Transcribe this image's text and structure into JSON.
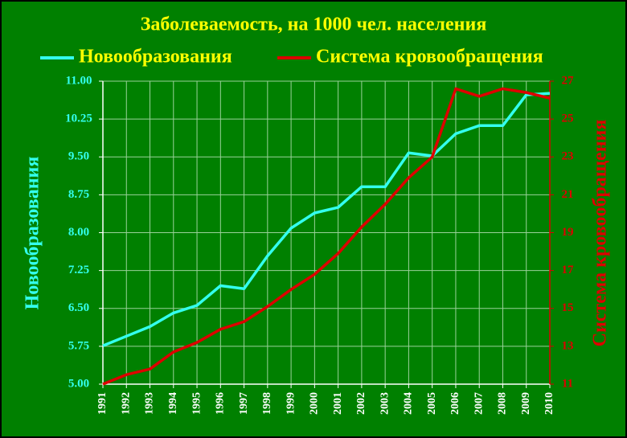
{
  "chart_data": {
    "type": "line",
    "title": "Заболеваемость, на 1000 чел. населения",
    "categories": [
      "1991",
      "1992",
      "1993",
      "1994",
      "1995",
      "1996",
      "1997",
      "1998",
      "1999",
      "2000",
      "2001",
      "2002",
      "2003",
      "2004",
      "2005",
      "2006",
      "2007",
      "2008",
      "2009",
      "2010"
    ],
    "series": [
      {
        "name": "Новообразования",
        "color": "#33ffee",
        "values": [
          5.76,
          5.95,
          6.14,
          6.41,
          6.56,
          6.95,
          6.89,
          7.54,
          8.09,
          8.39,
          8.5,
          8.91,
          8.91,
          9.58,
          9.52,
          9.96,
          10.12,
          10.12,
          10.73,
          10.76
        ]
      },
      {
        "name": "Система кровообращения",
        "color": "#dd0000",
        "axis": "y2",
        "values": [
          11.0,
          11.5,
          11.8,
          12.7,
          13.2,
          13.9,
          14.3,
          15.1,
          16.0,
          16.8,
          17.9,
          19.3,
          20.5,
          21.9,
          23.0,
          26.6,
          26.2,
          26.6,
          26.4,
          26.1
        ]
      }
    ],
    "ylabel": "Новообразования",
    "y2label": "Система кровообращения",
    "ylim": [
      5,
      11
    ],
    "yticks": [
      {
        "value": 5,
        "label": "5.00"
      },
      5.75,
      {
        "value": 6.5,
        "label": "6.50"
      },
      7.25,
      {
        "value": 8,
        "label": "8.00"
      },
      8.75,
      {
        "value": 9.5,
        "label": "9.50"
      },
      10.25,
      {
        "value": 11,
        "label": "11.00"
      }
    ],
    "y2lim": [
      11,
      27
    ],
    "y2ticks": [
      11,
      13,
      15,
      17,
      19,
      21,
      23,
      25,
      27
    ],
    "grid": true,
    "legend": "top"
  }
}
